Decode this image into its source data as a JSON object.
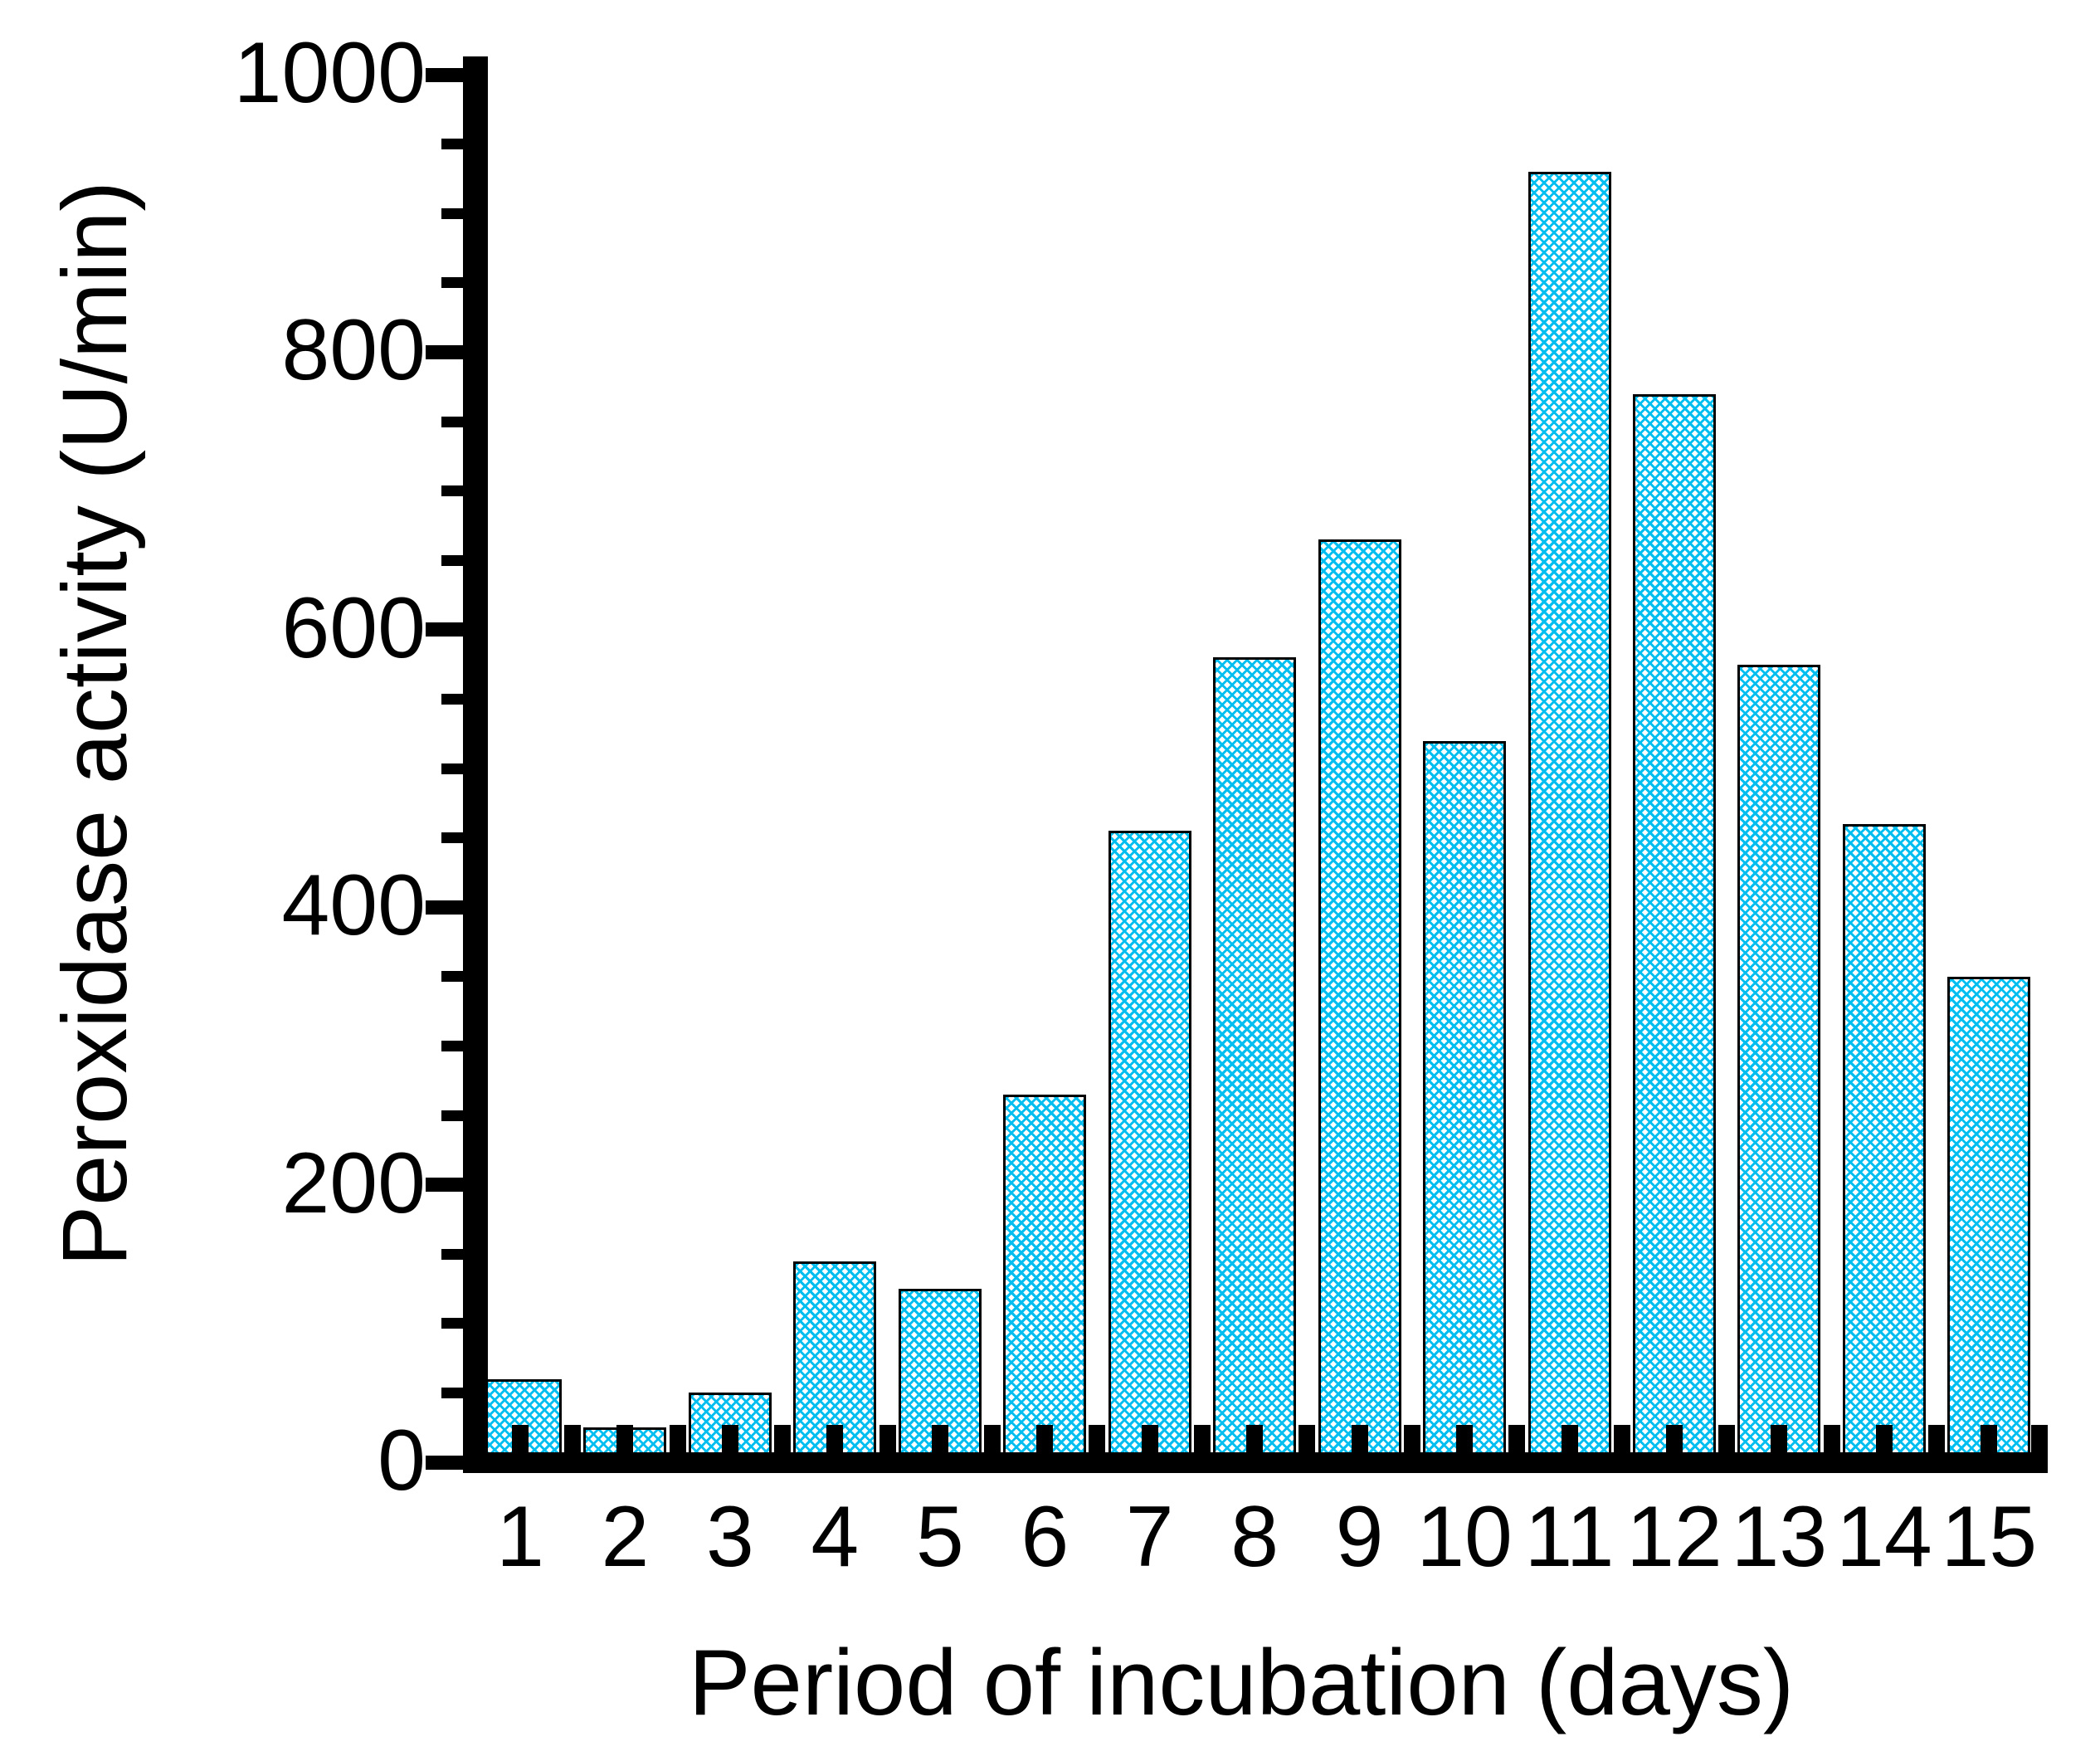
{
  "figure": {
    "background": "#FFFFFF"
  },
  "chart_data": {
    "type": "bar",
    "title": "",
    "xlabel": "Period of incubation (days)",
    "ylabel": "Peroxidase activity (U/min)",
    "categories": [
      "1",
      "2",
      "3",
      "4",
      "5",
      "6",
      "7",
      "8",
      "9",
      "10",
      "11",
      "12",
      "13",
      "14",
      "15"
    ],
    "values": [
      60,
      25,
      50,
      145,
      125,
      265,
      455,
      580,
      665,
      520,
      930,
      770,
      575,
      460,
      350
    ],
    "ylim": [
      0,
      1000
    ],
    "ytick_interval": 200,
    "yminor_tick_interval": 50,
    "ytick_labels": [
      "0",
      "200",
      "400",
      "600",
      "800",
      "1000"
    ],
    "grid": false,
    "legend": "none",
    "bar_fill_pattern": "diagonal-crosshatch",
    "bar_pattern_color": "#00BFF0",
    "bar_outline_color": "#000000",
    "axis_color": "#000000",
    "text_color": "#000000"
  }
}
